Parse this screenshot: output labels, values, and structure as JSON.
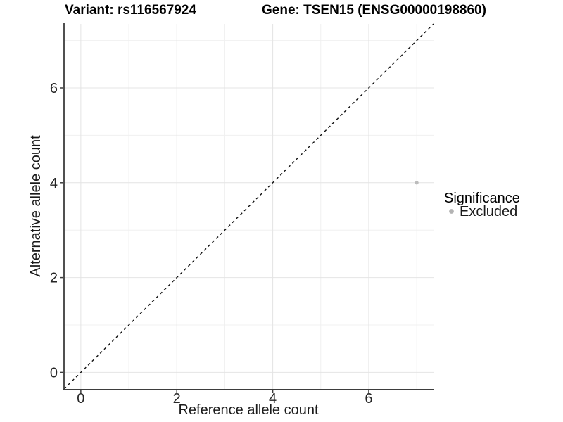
{
  "chart_data": {
    "type": "scatter",
    "title_left": "Variant: rs116567924",
    "title_right": "Gene: TSEN15 (ENSG00000198860)",
    "xlabel": "Reference allele count",
    "ylabel": "Alternative allele count",
    "xlim": [
      -0.35,
      7.35
    ],
    "ylim": [
      -0.35,
      7.35
    ],
    "x_ticks": [
      0,
      2,
      4,
      6
    ],
    "y_ticks": [
      0,
      2,
      4,
      6
    ],
    "x_minor_ticks": [
      1,
      3,
      5,
      7
    ],
    "y_minor_ticks": [
      1,
      3,
      5,
      7
    ],
    "grid": true,
    "legend_position": "right",
    "reference_line": {
      "type": "identity",
      "equation": "y = x",
      "style": "dashed",
      "color": "#111111"
    },
    "series": [
      {
        "name": "Excluded",
        "color": "#bcbcbc",
        "points": [
          {
            "x": 7,
            "y": 4
          }
        ]
      }
    ],
    "legend": {
      "title": "Significance",
      "entries": [
        {
          "label": "Excluded",
          "color": "#b3b3b3"
        }
      ]
    }
  },
  "colors": {
    "background": "#ffffff",
    "grid_major": "#e4e4e4",
    "grid_minor": "#f0f0f0",
    "axis_line": "#3d3d3d",
    "tick_mark": "#3d3d3d",
    "point": "#bcbcbc"
  }
}
